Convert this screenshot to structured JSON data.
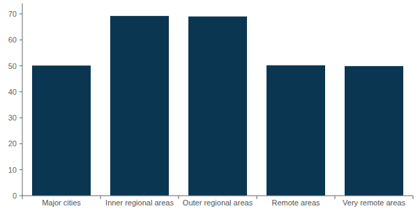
{
  "chart_data": {
    "type": "bar",
    "categories": [
      "Major cities",
      "Inner regional areas",
      "Outer regional areas",
      "Remote areas",
      "Very remote areas"
    ],
    "values": [
      50.1,
      69.2,
      69.0,
      50.2,
      49.9
    ],
    "color": "#0a3651",
    "ylim": [
      0,
      74
    ],
    "yticks": [
      0,
      10,
      20,
      30,
      40,
      50,
      60,
      70
    ],
    "grid": false
  }
}
